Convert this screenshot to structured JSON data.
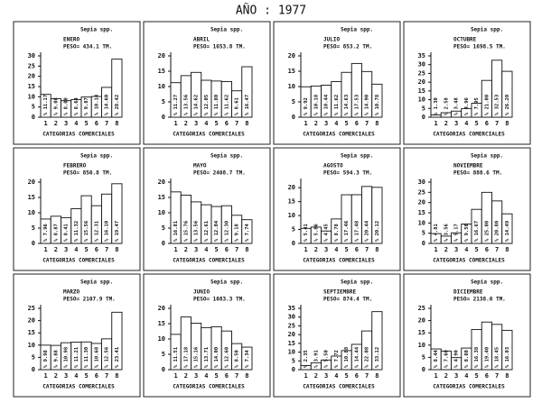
{
  "title": "AÑO : 1977",
  "chart_data": [
    {
      "type": "bar",
      "title": "Sepia spp.",
      "month": "ENERO",
      "weight": "PESO=  434.1 TM.",
      "x_label": "CATEGORIAS COMERCIALES",
      "categories": [
        "1",
        "2",
        "3",
        "4",
        "5",
        "6",
        "7",
        "8"
      ],
      "values": [
        11.17,
        9.08,
        8.08,
        8.64,
        9.87,
        10.14,
        14.6,
        28.42
      ],
      "value_labels": [
        "% 11.17",
        "% 9.08",
        "% 8.08",
        "% 8.64",
        "% 9.87",
        "% 10.14",
        "% 14.60",
        "% 28.42"
      ],
      "ylim": [
        0,
        30
      ],
      "yticks": [
        0,
        5,
        10,
        15,
        20,
        25,
        30
      ],
      "color": "#ffffff"
    },
    {
      "type": "bar",
      "title": "Sepia spp.",
      "month": "ABRIL",
      "weight": "PESO= 1653.8 TM.",
      "x_label": "CATEGORIAS COMERCIALES",
      "categories": [
        "1",
        "2",
        "3",
        "4",
        "5",
        "6",
        "7",
        "8"
      ],
      "values": [
        11.27,
        13.56,
        14.62,
        12.05,
        11.8,
        11.62,
        8.61,
        16.47
      ],
      "value_labels": [
        "% 11.27",
        "% 13.56",
        "% 14.62",
        "% 12.05",
        "% 11.80",
        "% 11.62",
        "% 8.61",
        "% 16.47"
      ],
      "ylim": [
        0,
        20
      ],
      "yticks": [
        0,
        5,
        10,
        15,
        20
      ],
      "color": "#ffffff"
    },
    {
      "type": "bar",
      "title": "Sepia spp.",
      "month": "JULIO",
      "weight": "PESO=  853.2 TM.",
      "x_label": "CATEGORIAS COMERCIALES",
      "categories": [
        "1",
        "2",
        "3",
        "4",
        "5",
        "6",
        "7",
        "8"
      ],
      "values": [
        9.92,
        10.18,
        10.44,
        11.62,
        14.63,
        17.53,
        14.9,
        10.78
      ],
      "value_labels": [
        "% 9.92",
        "% 10.18",
        "% 10.44",
        "% 11.62",
        "% 14.63",
        "% 17.53",
        "% 14.90",
        "% 10.78"
      ],
      "ylim": [
        0,
        20
      ],
      "yticks": [
        0,
        5,
        10,
        15,
        20
      ],
      "color": "#ffffff"
    },
    {
      "type": "bar",
      "title": "Sepia spp.",
      "month": "OCTUBRE",
      "weight": "PESO= 1698.5 TM.",
      "x_label": "CATEGORIAS COMERCIALES",
      "categories": [
        "1",
        "2",
        "3",
        "4",
        "5",
        "6",
        "7",
        "8"
      ],
      "values": [
        1.3,
        2.58,
        3.48,
        4.96,
        7.95,
        21.0,
        32.53,
        26.2
      ],
      "value_labels": [
        "% 1.30",
        "% 2.58",
        "% 3.48",
        "% 4.96",
        "% 7.95",
        "% 21.00",
        "% 32.53",
        "% 26.20"
      ],
      "ylim": [
        0,
        35
      ],
      "yticks": [
        0,
        5,
        10,
        15,
        20,
        25,
        30,
        35
      ],
      "color": "#ffffff"
    },
    {
      "type": "bar",
      "title": "Sepia spp.",
      "month": "FEBRERO",
      "weight": "PESO=  850.8 TM.",
      "x_label": "CATEGORIAS COMERCIALES",
      "categories": [
        "1",
        "2",
        "3",
        "4",
        "5",
        "6",
        "7",
        "8"
      ],
      "values": [
        7.96,
        8.87,
        8.41,
        11.32,
        15.56,
        12.31,
        16.1,
        19.47
      ],
      "value_labels": [
        "% 7.96",
        "% 8.87",
        "% 8.41",
        "% 11.32",
        "% 15.56",
        "% 12.31",
        "% 16.10",
        "% 19.47"
      ],
      "ylim": [
        0,
        20
      ],
      "yticks": [
        0,
        5,
        10,
        15,
        20
      ],
      "color": "#ffffff"
    },
    {
      "type": "bar",
      "title": "Sepia spp.",
      "month": "MAYO",
      "weight": "PESO= 2408.7 TM.",
      "x_label": "CATEGORIAS COMERCIALES",
      "categories": [
        "1",
        "2",
        "3",
        "4",
        "5",
        "6",
        "7",
        "8"
      ],
      "values": [
        16.81,
        15.76,
        13.56,
        12.61,
        12.04,
        12.3,
        9.18,
        7.74
      ],
      "value_labels": [
        "% 16.81",
        "% 15.76",
        "% 13.56",
        "% 12.61",
        "% 12.04",
        "% 12.30",
        "% 9.18",
        "% 7.74"
      ],
      "ylim": [
        0,
        20
      ],
      "yticks": [
        0,
        5,
        10,
        15,
        20
      ],
      "color": "#ffffff"
    },
    {
      "type": "bar",
      "title": "Sepia spp.",
      "month": "AGOSTO",
      "weight": "PESO=  594.3 TM.",
      "x_label": "CATEGORIAS COMERCIALES",
      "categories": [
        "1",
        "2",
        "3",
        "4",
        "5",
        "6",
        "7",
        "8"
      ],
      "values": [
        5.41,
        5.86,
        4.45,
        8.78,
        17.46,
        17.48,
        20.44,
        20.12
      ],
      "value_labels": [
        "% 5.41",
        "% 5.86",
        "% 4.45",
        "% 8.78",
        "% 17.46",
        "% 17.48",
        "% 20.44",
        "% 20.12"
      ],
      "ylim": [
        0,
        22
      ],
      "yticks": [
        0,
        5,
        10,
        15,
        20
      ],
      "color": "#ffffff"
    },
    {
      "type": "bar",
      "title": "Sepia spp.",
      "month": "NOVIEMBRE",
      "weight": "PESO=  888.6 TM.",
      "x_label": "CATEGORIAS COMERCIALES",
      "categories": [
        "1",
        "2",
        "3",
        "4",
        "5",
        "6",
        "7",
        "8"
      ],
      "values": [
        4.81,
        3.56,
        5.17,
        9.5,
        16.67,
        25.0,
        20.8,
        14.49
      ],
      "value_labels": [
        "% 4.81",
        "% 3.56",
        "% 5.17",
        "% 9.50",
        "% 16.67",
        "% 25.00",
        "% 20.80",
        "% 14.49"
      ],
      "ylim": [
        0,
        30
      ],
      "yticks": [
        0,
        5,
        10,
        15,
        20,
        25,
        30
      ],
      "color": "#ffffff"
    },
    {
      "type": "bar",
      "title": "Sepia spp.",
      "month": "MARZO",
      "weight": "PESO= 2107.9 TM.",
      "x_label": "CATEGORIAS COMERCIALES",
      "categories": [
        "1",
        "2",
        "3",
        "4",
        "5",
        "6",
        "7",
        "8"
      ],
      "values": [
        9.98,
        9.88,
        10.98,
        11.21,
        11.3,
        10.68,
        12.56,
        23.41
      ],
      "value_labels": [
        "% 9.98",
        "% 9.88",
        "% 10.98",
        "% 11.21",
        "% 11.30",
        "% 10.68",
        "% 12.56",
        "% 23.41"
      ],
      "ylim": [
        0,
        25
      ],
      "yticks": [
        0,
        5,
        10,
        15,
        20,
        25
      ],
      "color": "#ffffff"
    },
    {
      "type": "bar",
      "title": "Sepia spp.",
      "month": "JUNIO",
      "weight": "PESO= 1083.3 TM.",
      "x_label": "CATEGORIAS COMERCIALES",
      "categories": [
        "1",
        "2",
        "3",
        "4",
        "5",
        "6",
        "7",
        "8"
      ],
      "values": [
        11.51,
        17.18,
        15.16,
        13.71,
        14.0,
        12.6,
        8.5,
        7.34
      ],
      "value_labels": [
        "% 11.51",
        "% 17.18",
        "% 15.16",
        "% 13.71",
        "% 14.00",
        "% 12.60",
        "% 8.50",
        "% 7.34"
      ],
      "ylim": [
        0,
        20
      ],
      "yticks": [
        0,
        5,
        10,
        15,
        20
      ],
      "color": "#ffffff"
    },
    {
      "type": "bar",
      "title": "Sepia spp.",
      "month": "SEPTIEMBRE",
      "weight": "PESO=  874.4 TM.",
      "x_label": "CATEGORIAS COMERCIALES",
      "categories": [
        "1",
        "2",
        "3",
        "4",
        "5",
        "6",
        "7",
        "8"
      ],
      "values": [
        2.35,
        3.91,
        5.5,
        7.72,
        10.88,
        14.44,
        22.08,
        33.12
      ],
      "value_labels": [
        "% 2.35",
        "% 3.91",
        "% 5.50",
        "% 7.72",
        "% 10.88",
        "% 14.44",
        "% 22.08",
        "% 33.12"
      ],
      "ylim": [
        0,
        35
      ],
      "yticks": [
        0,
        5,
        10,
        15,
        20,
        25,
        30,
        35
      ],
      "color": "#ffffff"
    },
    {
      "type": "bar",
      "title": "Sepia spp.",
      "month": "DICIEMBRE",
      "weight": "PESO= 2138.0 TM.",
      "x_label": "CATEGORIAS COMERCIALES",
      "categories": [
        "1",
        "2",
        "3",
        "4",
        "5",
        "6",
        "7",
        "8"
      ],
      "values": [
        8.44,
        7.6,
        4.9,
        8.8,
        16.38,
        19.4,
        18.45,
        16.03
      ],
      "value_labels": [
        "% 8.44",
        "% 7.60",
        "% 4.90",
        "% 8.80",
        "% 16.38",
        "% 19.40",
        "% 18.45",
        "% 16.03"
      ],
      "ylim": [
        0,
        25
      ],
      "yticks": [
        0,
        5,
        10,
        15,
        20,
        25
      ],
      "color": "#ffffff"
    }
  ]
}
